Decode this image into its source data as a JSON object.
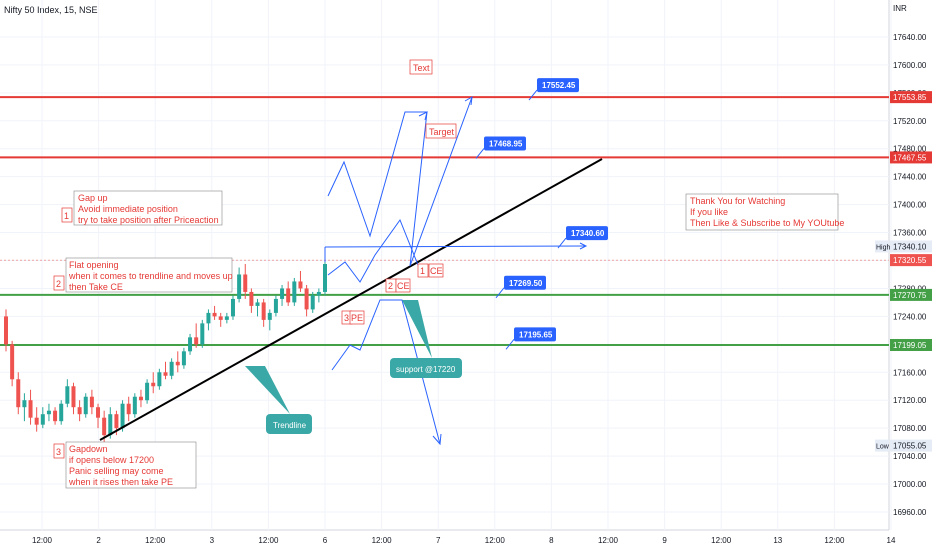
{
  "symbol": "Nifty 50 Index, 15, NSE",
  "axis": {
    "currency": "INR",
    "y_min": 16940,
    "y_max": 17690,
    "y_ticks": [
      "17680.00",
      "17640.00",
      "17600.00",
      "17560.00",
      "17520.00",
      "17480.00",
      "17440.00",
      "17400.00",
      "17360.00",
      "17320.00",
      "17280.00",
      "17240.00",
      "17200.00",
      "17160.00",
      "17120.00",
      "17080.00",
      "17040.00",
      "17000.00",
      "16960.00"
    ],
    "x_ticks": [
      "12:00",
      "2",
      "12:00",
      "3",
      "12:00",
      "6",
      "12:00",
      "7",
      "12:00",
      "8",
      "12:00",
      "9",
      "12:00",
      "13",
      "12:00",
      "14"
    ]
  },
  "price_levels": [
    {
      "label": "17553.85",
      "value": 17553.85,
      "color": "#e53935"
    },
    {
      "label": "17467.55",
      "value": 17467.55,
      "color": "#e53935"
    },
    {
      "label": "17270.75",
      "value": 17270.75,
      "color": "#43a047"
    },
    {
      "label": "17199.05",
      "value": 17199.05,
      "color": "#43a047"
    }
  ],
  "axis_badges": [
    {
      "label": "17340.10",
      "value": 17340.1,
      "tag": "High"
    },
    {
      "label": "17320.55",
      "value": 17320.55,
      "tag": ""
    },
    {
      "label": "17055.05",
      "value": 17055.05,
      "tag": "Low"
    }
  ],
  "callouts": [
    {
      "label": "17552.45",
      "value": 17552.45
    },
    {
      "label": "17468.95",
      "value": 17468.95
    },
    {
      "label": "17340.60",
      "value": 17340.6
    },
    {
      "label": "17269.50",
      "value": 17269.5
    },
    {
      "label": "17195.65",
      "value": 17195.65
    }
  ],
  "notes": {
    "text_label": "Text",
    "target_label": "Target",
    "thanks": [
      "Thank You for Watching",
      "If you like",
      "Then Like & Subscribe to My YOUtube"
    ],
    "scenario1_num": "1",
    "scenario1": [
      "Gap up",
      "Avoid immediate position",
      "try to take position after Priceaction"
    ],
    "scenario2_num": "2",
    "scenario2": [
      "Flat opening",
      "when it comes to trendline and moves up",
      "then Take CE"
    ],
    "scenario3_num": "3",
    "scenario3": [
      "Gapdown",
      "if opens below 17200",
      "Panic selling may come",
      "when it rises then take PE"
    ],
    "marker1": [
      "1",
      "CE"
    ],
    "marker2": [
      "2",
      "CE"
    ],
    "marker3": [
      "3",
      "PE"
    ],
    "trendline_label": "Trendline",
    "support_label": "support @17220"
  },
  "colors": {
    "up": "#26a69a",
    "down": "#ef5350",
    "resistance": "#e53935",
    "support": "#43a047",
    "callout": "#2962ff",
    "projection": "#2962ff",
    "teal": "#3aa8a6"
  },
  "chart_data": {
    "type": "candlestick",
    "title": "Nifty 50 Index, 15, NSE",
    "candles_ohlc": [
      [
        17240,
        17250,
        17190,
        17200
      ],
      [
        17200,
        17205,
        17140,
        17150
      ],
      [
        17150,
        17160,
        17100,
        17110
      ],
      [
        17110,
        17130,
        17090,
        17120
      ],
      [
        17120,
        17135,
        17085,
        17095
      ],
      [
        17095,
        17110,
        17075,
        17085
      ],
      [
        17085,
        17110,
        17080,
        17100
      ],
      [
        17100,
        17115,
        17090,
        17105
      ],
      [
        17105,
        17110,
        17085,
        17090
      ],
      [
        17090,
        17120,
        17085,
        17115
      ],
      [
        17115,
        17150,
        17110,
        17140
      ],
      [
        17140,
        17145,
        17100,
        17110
      ],
      [
        17110,
        17120,
        17090,
        17100
      ],
      [
        17100,
        17130,
        17095,
        17125
      ],
      [
        17125,
        17135,
        17100,
        17110
      ],
      [
        17110,
        17115,
        17080,
        17095
      ],
      [
        17095,
        17105,
        17060,
        17070
      ],
      [
        17070,
        17110,
        17065,
        17100
      ],
      [
        17100,
        17105,
        17070,
        17080
      ],
      [
        17080,
        17120,
        17075,
        17115
      ],
      [
        17115,
        17125,
        17090,
        17100
      ],
      [
        17100,
        17130,
        17095,
        17125
      ],
      [
        17125,
        17135,
        17110,
        17120
      ],
      [
        17120,
        17150,
        17115,
        17145
      ],
      [
        17145,
        17160,
        17130,
        17140
      ],
      [
        17140,
        17165,
        17135,
        17160
      ],
      [
        17160,
        17175,
        17150,
        17155
      ],
      [
        17155,
        17180,
        17150,
        17175
      ],
      [
        17175,
        17190,
        17160,
        17170
      ],
      [
        17170,
        17195,
        17165,
        17190
      ],
      [
        17190,
        17215,
        17185,
        17210
      ],
      [
        17210,
        17230,
        17195,
        17200
      ],
      [
        17200,
        17235,
        17195,
        17230
      ],
      [
        17230,
        17250,
        17220,
        17245
      ],
      [
        17245,
        17255,
        17235,
        17240
      ],
      [
        17240,
        17245,
        17225,
        17235
      ],
      [
        17235,
        17245,
        17230,
        17240
      ],
      [
        17240,
        17270,
        17235,
        17265
      ],
      [
        17265,
        17310,
        17260,
        17300
      ],
      [
        17300,
        17315,
        17265,
        17275
      ],
      [
        17275,
        17280,
        17245,
        17255
      ],
      [
        17255,
        17265,
        17240,
        17260
      ],
      [
        17260,
        17265,
        17225,
        17235
      ],
      [
        17235,
        17250,
        17220,
        17245
      ],
      [
        17245,
        17270,
        17240,
        17265
      ],
      [
        17265,
        17285,
        17255,
        17280
      ],
      [
        17280,
        17290,
        17255,
        17260
      ],
      [
        17260,
        17295,
        17255,
        17290
      ],
      [
        17290,
        17305,
        17275,
        17280
      ],
      [
        17280,
        17285,
        17240,
        17250
      ],
      [
        17250,
        17275,
        17245,
        17270
      ],
      [
        17270,
        17280,
        17260,
        17275
      ],
      [
        17275,
        17320,
        17270,
        17315
      ]
    ],
    "price_lines": [
      17553.85,
      17467.55,
      17270.75,
      17199.05
    ],
    "ylim": [
      16940,
      17690
    ],
    "x_labels": [
      "12:00",
      "2",
      "12:00",
      "3",
      "12:00",
      "6",
      "12:00",
      "7",
      "12:00",
      "8",
      "12:00",
      "9",
      "12:00",
      "13",
      "12:00",
      "14"
    ]
  }
}
